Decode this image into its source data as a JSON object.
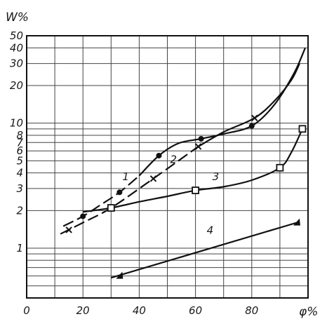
{
  "chart_data": {
    "type": "line",
    "ylabel": "W%",
    "xlabel": "φ%",
    "xlim": [
      0,
      100
    ],
    "ylim": [
      0.4,
      50
    ],
    "yscale": "log",
    "x_ticks": [
      "0",
      "20",
      "40",
      "60",
      "80"
    ],
    "y_ticks": [
      {
        "value": 1,
        "label": "1"
      },
      {
        "value": 2,
        "label": "2"
      },
      {
        "value": 3,
        "label": "3"
      },
      {
        "value": 4,
        "label": "4"
      },
      {
        "value": 5,
        "label": "5"
      },
      {
        "value": 6,
        "label": "6"
      },
      {
        "value": 7,
        "label": "7"
      },
      {
        "value": 8,
        "label": "8"
      },
      {
        "value": 10,
        "label": "10"
      },
      {
        "value": 20,
        "label": "20"
      },
      {
        "value": 30,
        "label": "30"
      },
      {
        "value": 40,
        "label": "40"
      },
      {
        "value": 50,
        "label": "50"
      }
    ],
    "grid": true,
    "series": [
      {
        "name": "1",
        "marker": "dot",
        "x": [
          20,
          33,
          47,
          62,
          80
        ],
        "y": [
          1.8,
          2.8,
          5.5,
          7.5,
          9.5
        ],
        "curve_x": [
          13,
          20,
          26,
          33,
          40,
          47,
          54,
          62,
          70,
          80,
          88,
          95,
          99
        ],
        "curve_y": [
          1.5,
          1.8,
          2.2,
          2.8,
          3.8,
          5.5,
          6.9,
          7.5,
          8.2,
          9.5,
          14,
          25,
          40
        ]
      },
      {
        "name": "2",
        "marker": "cross",
        "x": [
          15,
          45,
          61,
          81
        ],
        "y": [
          1.4,
          3.6,
          6.5,
          11
        ],
        "curve_x": [
          12,
          20,
          30,
          45,
          61,
          70,
          81,
          88,
          94,
          97
        ],
        "curve_y": [
          1.3,
          1.6,
          2.1,
          3.6,
          6.5,
          8.5,
          11,
          15,
          22,
          30
        ]
      },
      {
        "name": "3",
        "marker": "square",
        "x": [
          30,
          60,
          90,
          98
        ],
        "y": [
          2.1,
          2.9,
          4.4,
          9
        ],
        "curve_x": [
          20,
          30,
          40,
          50,
          60,
          70,
          80,
          90,
          94,
          98
        ],
        "curve_y": [
          1.95,
          2.1,
          2.35,
          2.6,
          2.9,
          3.1,
          3.5,
          4.4,
          5.8,
          9
        ]
      },
      {
        "name": "4",
        "marker": "triangle",
        "x": [
          33,
          96
        ],
        "y": [
          0.6,
          1.6
        ],
        "curve_x": [
          30,
          96
        ],
        "curve_y": [
          0.58,
          1.6
        ]
      }
    ]
  }
}
